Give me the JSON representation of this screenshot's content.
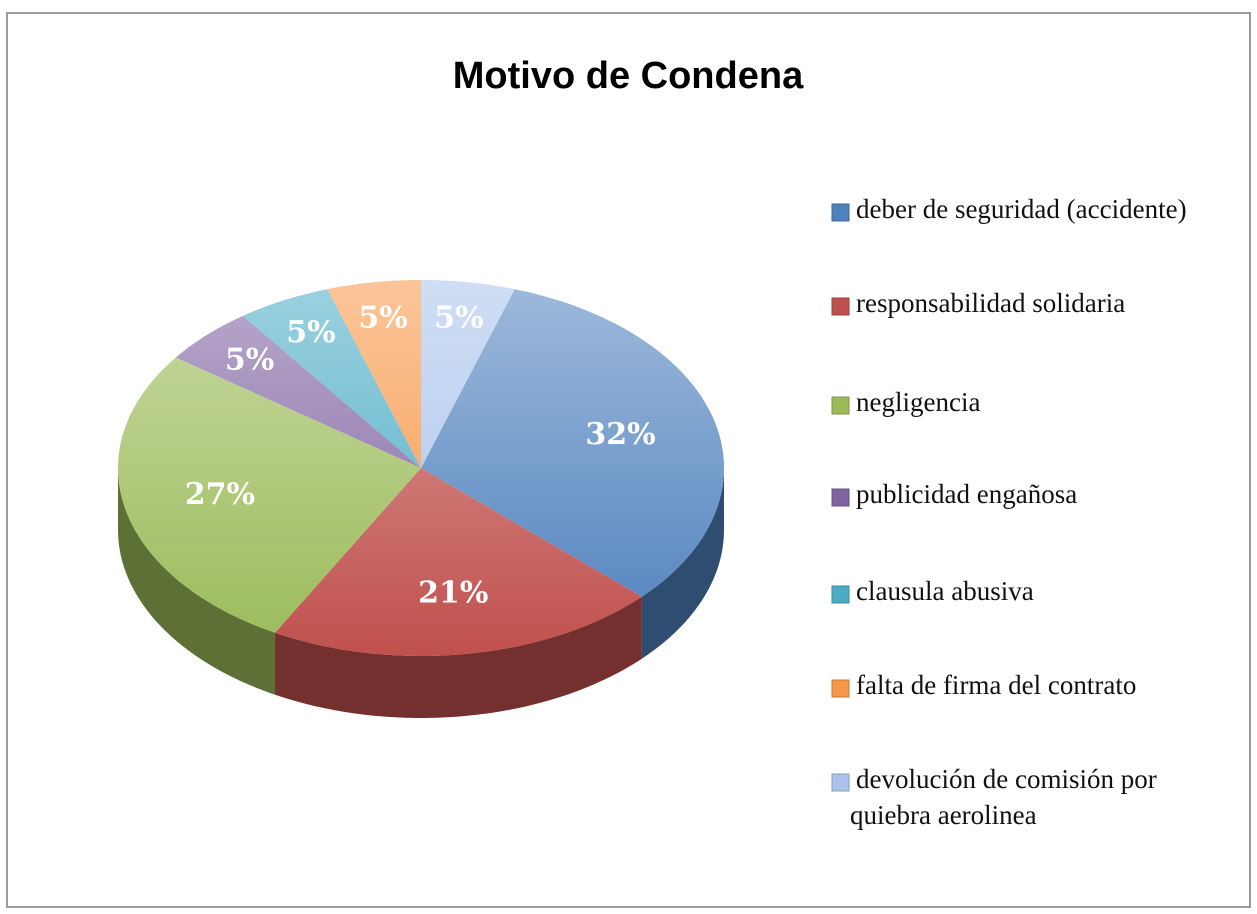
{
  "chart_data": {
    "type": "pie",
    "title": "Motivo de Condena",
    "categories": [
      "deber de seguridad (accidente)",
      "responsabilidad solidaria",
      "negligencia",
      "publicidad engañosa",
      "clausula abusiva",
      "falta de firma del contrato",
      "devolución de comisión por quiebra aerolinea"
    ],
    "values": [
      32,
      21,
      27,
      5,
      5,
      5,
      5
    ],
    "value_labels": [
      "32%",
      "21%",
      "27%",
      "5%",
      "5%",
      "5%",
      "5%"
    ],
    "colors": [
      "#4f81bd",
      "#c0504d",
      "#9bbb59",
      "#8064a2",
      "#4bacc6",
      "#f79646",
      "#a9c3ec"
    ],
    "legend": "right"
  }
}
